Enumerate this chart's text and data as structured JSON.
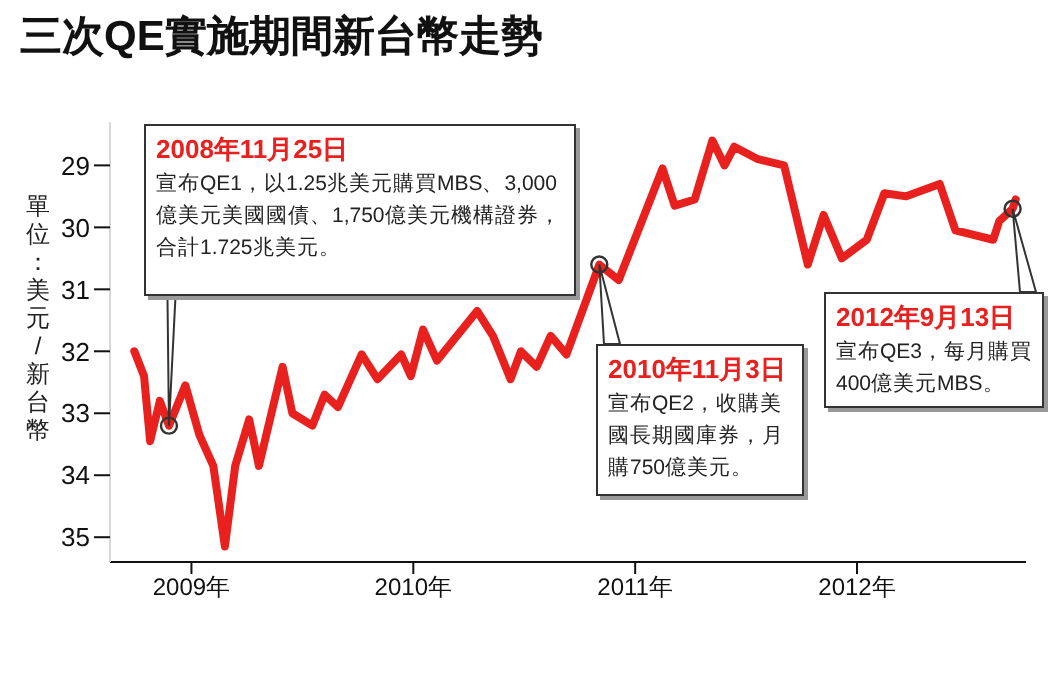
{
  "chart_data": {
    "type": "line",
    "title": "三次QE實施期間新台幣走勢",
    "ylabel": "單位：美元/新台幣",
    "xlim": [
      "2008-08-20",
      "2012-10-05"
    ],
    "xticks": [
      {
        "value": "2009-01-01",
        "label": "2009年"
      },
      {
        "value": "2010-01-01",
        "label": "2010年"
      },
      {
        "value": "2011-01-01",
        "label": "2011年"
      },
      {
        "value": "2012-01-01",
        "label": "2012年"
      }
    ],
    "ylim": [
      35.4,
      28.3
    ],
    "yticks": [
      29,
      30,
      31,
      32,
      33,
      34,
      35
    ],
    "x": [
      "2008-09-29",
      "2008-10-15",
      "2008-10-25",
      "2008-11-10",
      "2008-11-25",
      "2008-12-22",
      "2009-01-14",
      "2009-02-06",
      "2009-02-25",
      "2009-03-14",
      "2009-04-06",
      "2009-04-22",
      "2009-05-15",
      "2009-05-31",
      "2009-06-16",
      "2009-07-19",
      "2009-08-08",
      "2009-08-30",
      "2009-10-08",
      "2009-11-03",
      "2009-12-12",
      "2009-12-28",
      "2010-01-17",
      "2010-02-09",
      "2010-03-14",
      "2010-04-16",
      "2010-05-12",
      "2010-06-10",
      "2010-06-27",
      "2010-07-23",
      "2010-08-15",
      "2010-09-10",
      "2010-11-03",
      "2010-12-05",
      "2011-02-15",
      "2011-03-07",
      "2011-04-09",
      "2011-05-08",
      "2011-05-28",
      "2011-06-13",
      "2011-07-22",
      "2011-09-03",
      "2011-10-12",
      "2011-11-07",
      "2011-12-07",
      "2012-01-17",
      "2012-02-15",
      "2012-03-22",
      "2012-05-16",
      "2012-06-11",
      "2012-08-12",
      "2012-08-22",
      "2012-09-13",
      "2012-09-18"
    ],
    "series": [
      {
        "color": "#e8201e",
        "values": [
          32.0,
          32.4,
          33.45,
          32.8,
          33.2,
          32.55,
          33.35,
          33.85,
          35.15,
          33.85,
          33.1,
          33.85,
          32.9,
          32.25,
          33.0,
          33.2,
          32.7,
          32.9,
          32.05,
          32.45,
          32.05,
          32.4,
          31.65,
          32.15,
          31.75,
          31.35,
          31.75,
          32.45,
          32.0,
          32.25,
          31.75,
          32.05,
          30.6,
          30.85,
          29.05,
          29.65,
          29.55,
          28.6,
          29.0,
          28.7,
          28.9,
          29.0,
          30.6,
          29.8,
          30.5,
          30.2,
          29.45,
          29.5,
          29.3,
          30.05,
          30.2,
          29.9,
          29.7,
          29.55
        ]
      }
    ],
    "annotations": [
      {
        "text": "2008年11月25日",
        "x": "2008-11-25",
        "y": 33.2
      },
      "宣布QE1，以1.25兆美元購買MBS、3,000億美元美國國債、1,750億美元機構證券，合計1.725兆美元。",
      {
        "text": "2010年11月3日",
        "x": "2010-11-03",
        "y": 30.6
      },
      "宣布QE2，收購美國長期國庫券，月購750億美元。",
      {
        "text": "2012年9月13日",
        "x": "2012-09-13",
        "y": 29.7
      },
      "宣布QE3，每月購買400億美元MBS。"
    ]
  }
}
